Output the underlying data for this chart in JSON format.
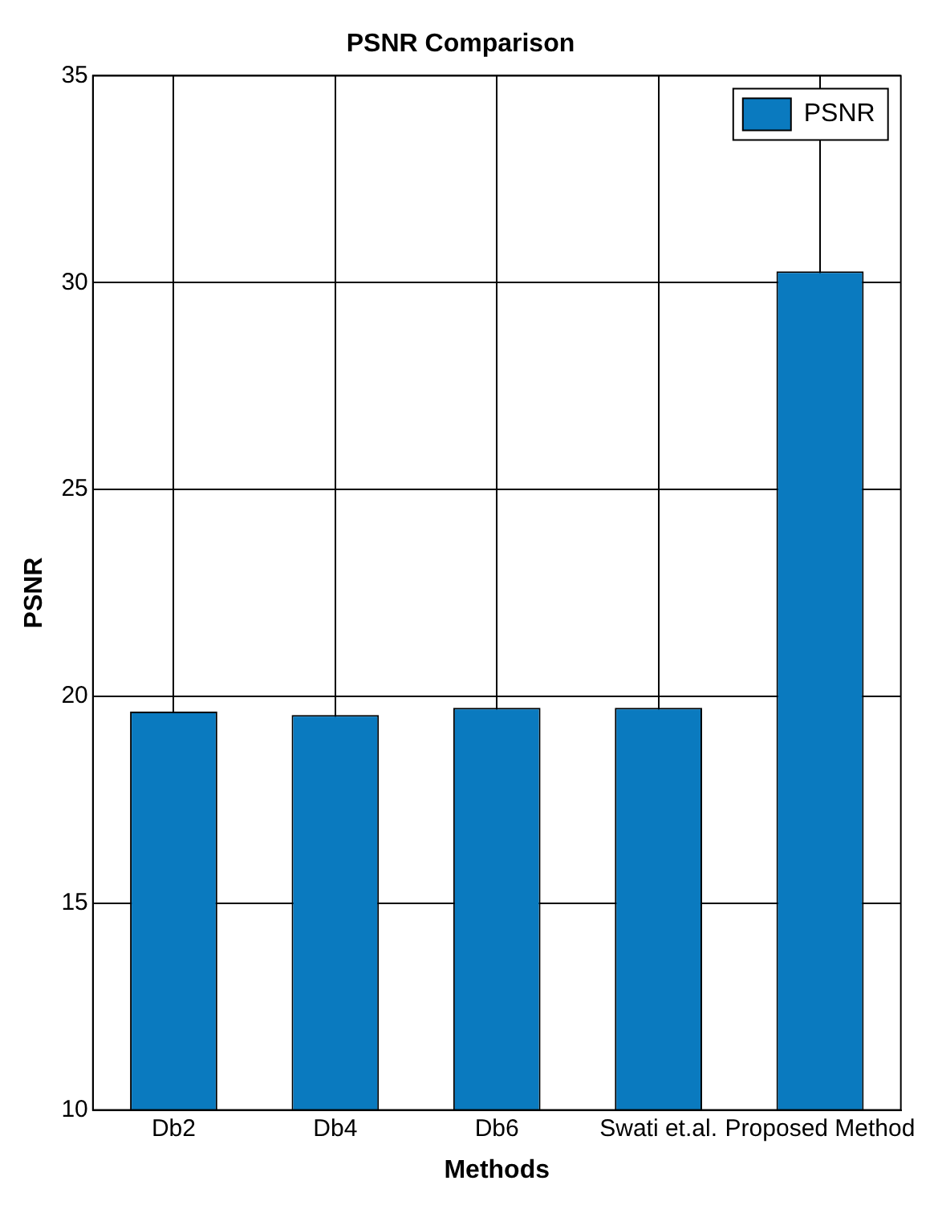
{
  "chart_data": {
    "type": "bar",
    "title": "PSNR Comparison",
    "xlabel": "Methods",
    "ylabel": "PSNR",
    "categories": [
      "Db2",
      "Db4",
      "Db6",
      "Swati et.al.",
      "Proposed Method"
    ],
    "series": [
      {
        "name": "PSNR",
        "color": "#0a7abf",
        "values": [
          19.63,
          19.55,
          19.72,
          19.72,
          30.27
        ]
      }
    ],
    "ylim": [
      10,
      35
    ],
    "yticks": [
      10,
      15,
      20,
      25,
      30,
      35
    ],
    "grid": true,
    "legend": "top right"
  }
}
